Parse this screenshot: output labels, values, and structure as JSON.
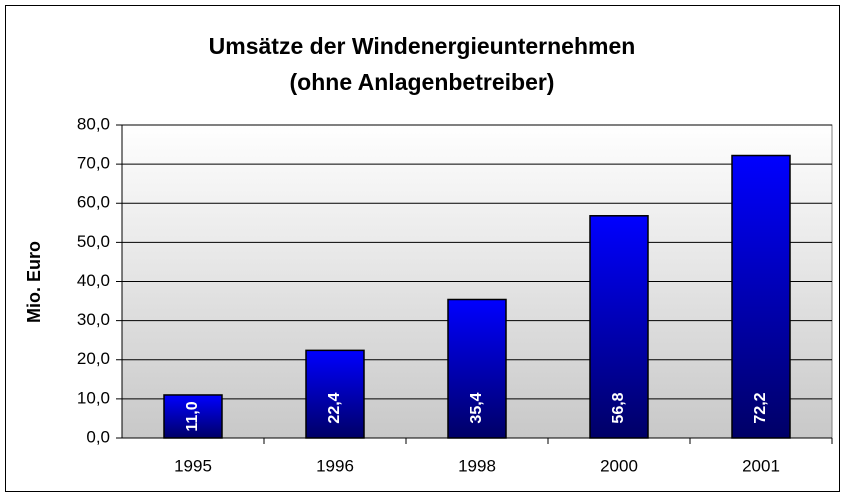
{
  "chart_data": {
    "type": "bar",
    "title": "Umsätze der Windenergieunternehmen",
    "subtitle": "(ohne Anlagenbetreiber)",
    "y_label": "Mio. Euro",
    "categories": [
      "1995",
      "1996",
      "1998",
      "2000",
      "2001"
    ],
    "values": [
      11.0,
      22.4,
      35.4,
      56.8,
      72.2
    ],
    "value_labels": [
      "11,0",
      "22,4",
      "35,4",
      "56,8",
      "72,2"
    ],
    "color": "#0000ff",
    "ylim": [
      0,
      80
    ],
    "yticks": [
      {
        "value": 0,
        "label": "0,0"
      },
      {
        "value": 10,
        "label": "10,0"
      },
      {
        "value": 20,
        "label": "20,0"
      },
      {
        "value": 30,
        "label": "30,0"
      },
      {
        "value": 40,
        "label": "40,0"
      },
      {
        "value": 50,
        "label": "50,0"
      },
      {
        "value": 60,
        "label": "60,0"
      },
      {
        "value": 70,
        "label": "70,0"
      },
      {
        "value": 80,
        "label": "80,0"
      }
    ],
    "grid": true
  }
}
